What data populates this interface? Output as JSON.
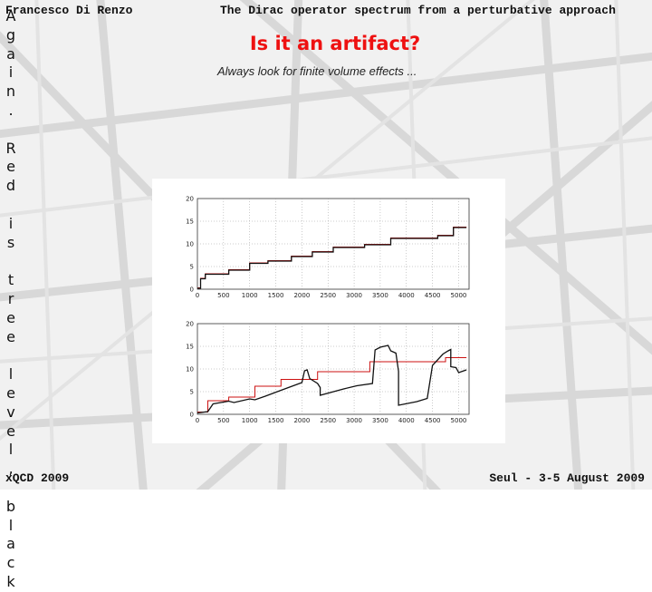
{
  "header": {
    "author": "Francesco Di Renzo",
    "talk_title": "The Dirac operator spectrum from a perturbative approach"
  },
  "slide": {
    "title": "Is it an artifact?",
    "subtitle": "Always look for finite volume effects ..."
  },
  "sidebar": {
    "vertical_text": "Again. Red is tree level, black"
  },
  "footer": {
    "left": "xQCD 2009",
    "right": "Seul - 3-5 August 2009"
  },
  "colors": {
    "title": "#ee1111",
    "tree_level": "#cc1111",
    "data": "#111111",
    "background_structure": "#d6d6d6"
  },
  "chart_data": [
    {
      "type": "line",
      "title": "",
      "xlabel": "",
      "ylabel": "",
      "xlim": [
        0,
        5200
      ],
      "ylim": [
        0,
        20
      ],
      "x_ticks": [
        "0",
        "500",
        "1000",
        "1500",
        "2000",
        "2500",
        "3000",
        "3500",
        "4000",
        "4500",
        "5000"
      ],
      "y_ticks": [
        "0",
        "5",
        "10",
        "15",
        "20"
      ],
      "grid": true,
      "series": [
        {
          "name": "",
          "color": "#cc1111",
          "points": [
            [
              0,
              0.3
            ],
            [
              60,
              0.3
            ],
            [
              60,
              2.4
            ],
            [
              150,
              2.4
            ],
            [
              150,
              3.4
            ],
            [
              600,
              3.4
            ],
            [
              600,
              4.3
            ],
            [
              1000,
              4.3
            ],
            [
              1000,
              5.8
            ],
            [
              1350,
              5.8
            ],
            [
              1350,
              6.3
            ],
            [
              1800,
              6.3
            ],
            [
              1800,
              7.3
            ],
            [
              2200,
              7.3
            ],
            [
              2200,
              8.3
            ],
            [
              2600,
              8.3
            ],
            [
              2600,
              9.3
            ],
            [
              3200,
              9.3
            ],
            [
              3200,
              9.9
            ],
            [
              3700,
              9.9
            ],
            [
              3700,
              11.3
            ],
            [
              4600,
              11.3
            ],
            [
              4600,
              11.9
            ],
            [
              4900,
              11.9
            ],
            [
              4900,
              13.7
            ],
            [
              5150,
              13.7
            ]
          ]
        },
        {
          "name": "",
          "color": "#111111",
          "points": [
            [
              0,
              0.2
            ],
            [
              60,
              0.2
            ],
            [
              60,
              2.3
            ],
            [
              150,
              2.3
            ],
            [
              150,
              3.3
            ],
            [
              600,
              3.3
            ],
            [
              600,
              4.2
            ],
            [
              1000,
              4.2
            ],
            [
              1000,
              5.7
            ],
            [
              1350,
              5.7
            ],
            [
              1350,
              6.2
            ],
            [
              1800,
              6.2
            ],
            [
              1800,
              7.2
            ],
            [
              2200,
              7.2
            ],
            [
              2200,
              8.2
            ],
            [
              2600,
              8.2
            ],
            [
              2600,
              9.2
            ],
            [
              3200,
              9.2
            ],
            [
              3200,
              9.8
            ],
            [
              3700,
              9.8
            ],
            [
              3700,
              11.2
            ],
            [
              4600,
              11.2
            ],
            [
              4600,
              11.8
            ],
            [
              4900,
              11.8
            ],
            [
              4900,
              13.6
            ],
            [
              5150,
              13.6
            ]
          ]
        }
      ]
    },
    {
      "type": "line",
      "title": "",
      "xlabel": "",
      "ylabel": "",
      "xlim": [
        0,
        5200
      ],
      "ylim": [
        0,
        20
      ],
      "x_ticks": [
        "0",
        "500",
        "1000",
        "1500",
        "2000",
        "2500",
        "3000",
        "3500",
        "4000",
        "4500",
        "5000"
      ],
      "y_ticks": [
        "0",
        "5",
        "10",
        "15",
        "20"
      ],
      "grid": true,
      "series": [
        {
          "name": "",
          "color": "#cc1111",
          "points": [
            [
              0,
              0.5
            ],
            [
              200,
              0.5
            ],
            [
              200,
              3.0
            ],
            [
              600,
              3.0
            ],
            [
              600,
              3.8
            ],
            [
              1100,
              3.8
            ],
            [
              1100,
              6.2
            ],
            [
              1600,
              6.2
            ],
            [
              1600,
              7.7
            ],
            [
              2300,
              7.7
            ],
            [
              2300,
              9.4
            ],
            [
              3300,
              9.4
            ],
            [
              3300,
              11.6
            ],
            [
              4200,
              11.6
            ],
            [
              4200,
              11.6
            ],
            [
              4750,
              11.6
            ],
            [
              4750,
              12.5
            ],
            [
              5150,
              12.5
            ]
          ]
        },
        {
          "name": "",
          "color": "#111111",
          "points": [
            [
              0,
              0.3
            ],
            [
              200,
              0.6
            ],
            [
              300,
              2.3
            ],
            [
              600,
              2.9
            ],
            [
              700,
              2.6
            ],
            [
              1000,
              3.4
            ],
            [
              1100,
              3.2
            ],
            [
              1300,
              4.0
            ],
            [
              1600,
              5.3
            ],
            [
              2000,
              7.0
            ],
            [
              2050,
              9.6
            ],
            [
              2100,
              9.8
            ],
            [
              2150,
              7.9
            ],
            [
              2300,
              6.8
            ],
            [
              2350,
              5.9
            ],
            [
              2350,
              4.2
            ],
            [
              2800,
              5.6
            ],
            [
              3050,
              6.3
            ],
            [
              3350,
              6.8
            ],
            [
              3400,
              14.2
            ],
            [
              3500,
              14.8
            ],
            [
              3650,
              15.2
            ],
            [
              3700,
              14.0
            ],
            [
              3800,
              13.5
            ],
            [
              3850,
              9.5
            ],
            [
              3850,
              2.0
            ],
            [
              4200,
              2.8
            ],
            [
              4400,
              3.5
            ],
            [
              4500,
              10.8
            ],
            [
              4700,
              13.3
            ],
            [
              4800,
              14.0
            ],
            [
              4850,
              14.3
            ],
            [
              4850,
              10.5
            ],
            [
              4950,
              10.3
            ],
            [
              5000,
              9.2
            ],
            [
              5150,
              9.8
            ]
          ]
        }
      ]
    }
  ]
}
